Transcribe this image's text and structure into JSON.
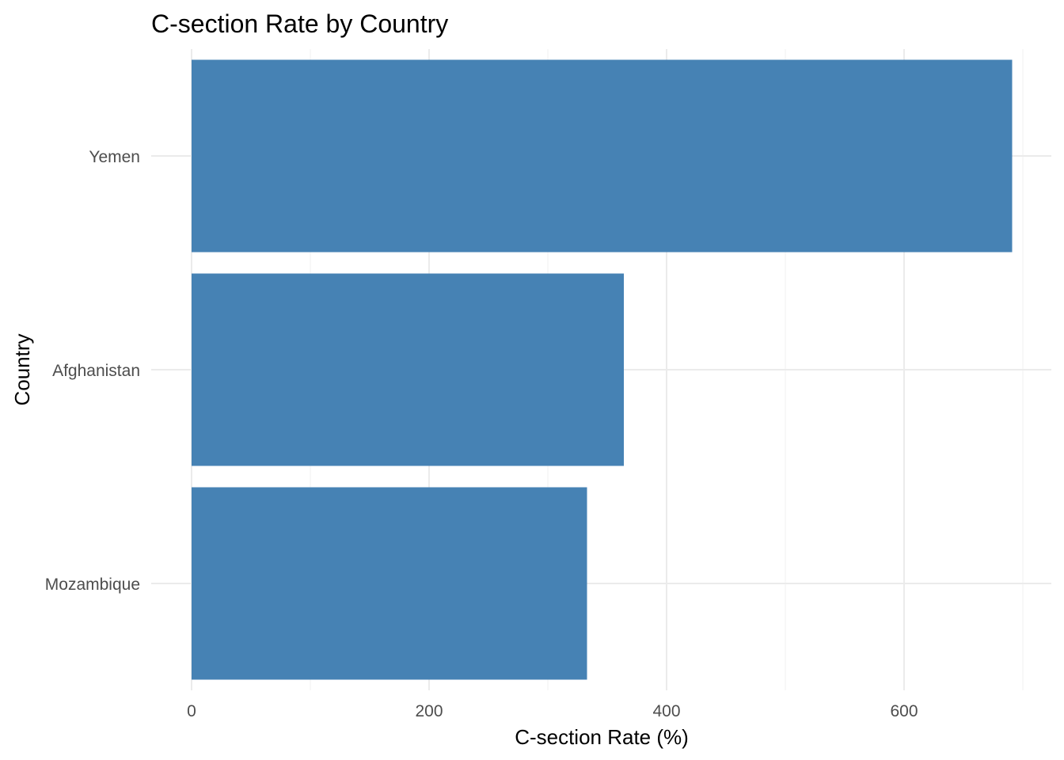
{
  "chart_data": {
    "type": "bar",
    "orientation": "horizontal",
    "title": "C-section Rate by Country",
    "xlabel": "C-section Rate (%)",
    "ylabel": "Country",
    "categories": [
      "Yemen",
      "Afghanistan",
      "Mozambique"
    ],
    "values": [
      691,
      364,
      333
    ],
    "xlim": [
      0,
      690
    ],
    "xticks": [
      0,
      200,
      400,
      600
    ],
    "grid": true,
    "legend": "none",
    "bar_color": "#4682B4"
  }
}
